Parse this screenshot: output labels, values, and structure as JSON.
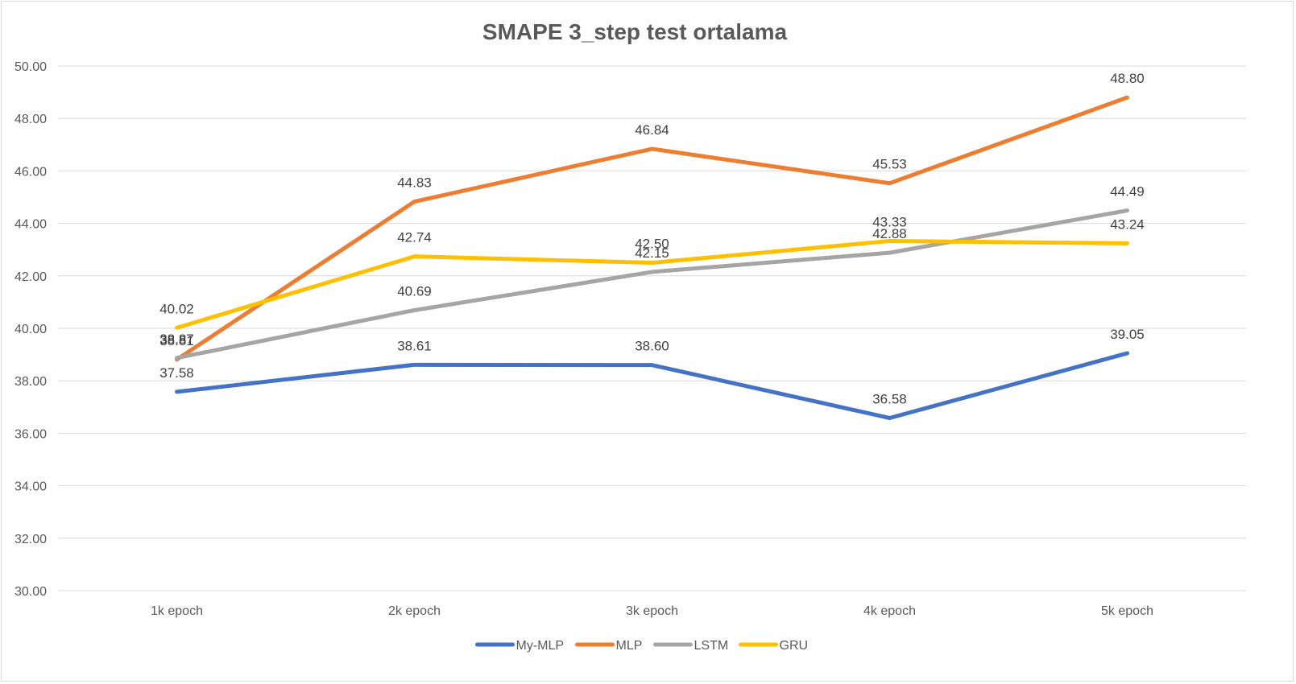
{
  "chart_data": {
    "type": "line",
    "title": "SMAPE 3_step test ortalama",
    "xlabel": "",
    "ylabel": "",
    "categories": [
      "1k epoch",
      "2k epoch",
      "3k epoch",
      "4k epoch",
      "5k epoch"
    ],
    "ylim": [
      30,
      50
    ],
    "ytick_step": 2,
    "ytick_labels": [
      "30.00",
      "32.00",
      "34.00",
      "36.00",
      "38.00",
      "40.00",
      "42.00",
      "44.00",
      "46.00",
      "48.00",
      "50.00"
    ],
    "grid": true,
    "legend_position": "bottom",
    "series": [
      {
        "name": "My-MLP",
        "color": "#4472C4",
        "values": [
          37.58,
          38.61,
          38.6,
          36.58,
          39.05
        ],
        "labels": [
          "37.58",
          "38.61",
          "38.60",
          "36.58",
          "39.05"
        ]
      },
      {
        "name": "MLP",
        "color": "#ED7D31",
        "values": [
          38.81,
          44.83,
          46.84,
          45.53,
          48.8
        ],
        "labels": [
          "38.81",
          "44.83",
          "46.84",
          "45.53",
          "48.80"
        ]
      },
      {
        "name": "LSTM",
        "color": "#A5A5A5",
        "values": [
          38.87,
          40.69,
          42.15,
          42.88,
          44.49
        ],
        "labels": [
          "38.87",
          "40.69",
          "42.15",
          "42.88",
          "44.49"
        ]
      },
      {
        "name": "GRU",
        "color": "#FFC000",
        "values": [
          40.02,
          42.74,
          42.5,
          43.33,
          43.24
        ],
        "labels": [
          "40.02",
          "42.74",
          "42.50",
          "43.33",
          "43.24"
        ]
      }
    ]
  }
}
